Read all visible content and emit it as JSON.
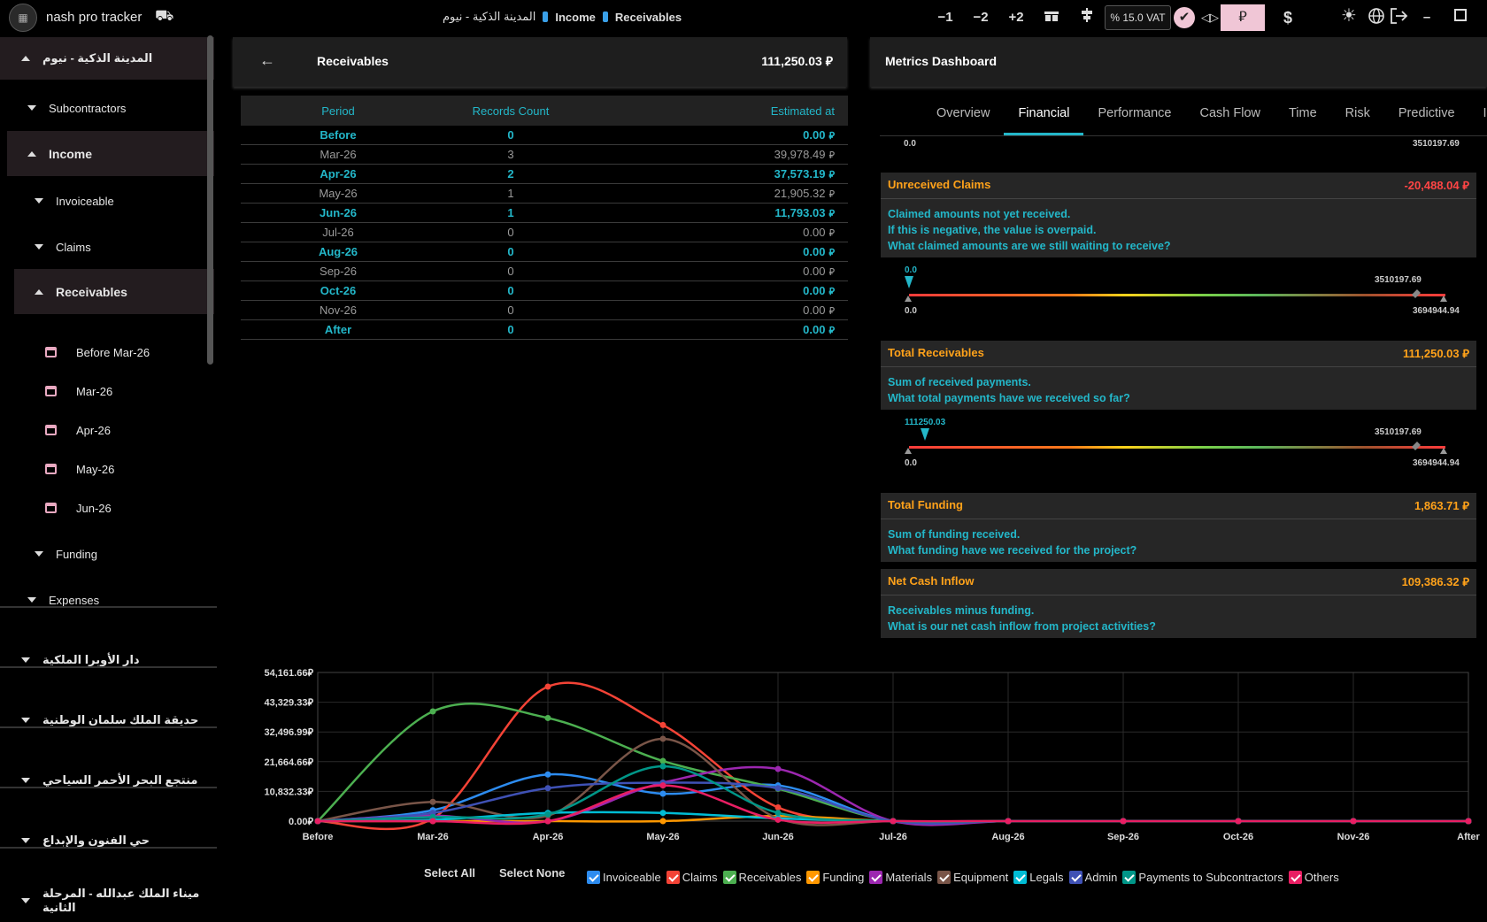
{
  "header": {
    "app_title": "nash pro tracker",
    "crumbs": [
      "المدينة الذكية - نيوم",
      "Income",
      "Receivables"
    ],
    "minus1": "−1",
    "minus2": "−2",
    "plus2": "+2",
    "vat": "% 15.0 VAT",
    "currency_sar": "⃁",
    "currency_usd": "$"
  },
  "sidebar": {
    "project": "المدينة الذكية - نيوم",
    "subcontractors": "Subcontractors",
    "income": "Income",
    "invoiceable": "Invoiceable",
    "claims": "Claims",
    "receivables": "Receivables",
    "periods": [
      "Before Mar-26",
      "Mar-26",
      "Apr-26",
      "May-26",
      "Jun-26"
    ],
    "funding": "Funding",
    "expenses": "Expenses",
    "projects": [
      "دار الأوبرا الملكية",
      "حديقة الملك سلمان الوطنية",
      "منتجع البحر الأحمر السياحي",
      "حي الفنون والإبداع",
      "ميناء الملك عبدالله - المرحلة الثانية"
    ]
  },
  "receivables": {
    "title": "Receivables",
    "total": "111,250.03",
    "currency": "⃁",
    "columns": [
      "Period",
      "Records Count",
      "Estimated at"
    ],
    "rows": [
      {
        "period": "Before",
        "count": "0",
        "amount": "0.00"
      },
      {
        "period": "Mar-26",
        "count": "3",
        "amount": "39,978.49"
      },
      {
        "period": "Apr-26",
        "count": "2",
        "amount": "37,573.19"
      },
      {
        "period": "May-26",
        "count": "1",
        "amount": "21,905.32"
      },
      {
        "period": "Jun-26",
        "count": "1",
        "amount": "11,793.03"
      },
      {
        "period": "Jul-26",
        "count": "0",
        "amount": "0.00"
      },
      {
        "period": "Aug-26",
        "count": "0",
        "amount": "0.00"
      },
      {
        "period": "Sep-26",
        "count": "0",
        "amount": "0.00"
      },
      {
        "period": "Oct-26",
        "count": "0",
        "amount": "0.00"
      },
      {
        "period": "Nov-26",
        "count": "0",
        "amount": "0.00"
      },
      {
        "period": "After",
        "count": "0",
        "amount": "0.00"
      }
    ]
  },
  "metrics": {
    "title": "Metrics Dashboard",
    "tabs": [
      "Overview",
      "Financial",
      "Performance",
      "Cash Flow",
      "Time",
      "Risk",
      "Predictive",
      "I"
    ],
    "active_tab": "Financial",
    "top_gauge": {
      "min": "0.0",
      "max": "3510197.69"
    },
    "cards": [
      {
        "title": "Unreceived Claims",
        "value": "-20,488.04",
        "value_color": "#ff4545",
        "desc": [
          "Claimed amounts not yet received.",
          "If this is negative, the value is overpaid.",
          "What claimed amounts are we still waiting to receive?"
        ],
        "gauge": {
          "marker": "0.0",
          "target": "3510197.69",
          "min": "0.0",
          "max": "3694944.94",
          "marker_pos": 0.0
        }
      },
      {
        "title": "Total Receivables",
        "value": "111,250.03",
        "value_color": "#ffa21a",
        "desc": [
          "Sum of received payments.",
          "What total payments have we received so far?"
        ],
        "gauge": {
          "marker": "111250.03",
          "target": "3510197.69",
          "min": "0.0",
          "max": "3694944.94",
          "marker_pos": 0.03
        }
      },
      {
        "title": "Total Funding",
        "value": "1,863.71",
        "value_color": "#ffa21a",
        "desc": [
          "Sum of funding received.",
          "What funding have we received for the project?"
        ]
      },
      {
        "title": "Net Cash Inflow",
        "value": "109,386.32",
        "value_color": "#ffa21a",
        "desc": [
          "Receivables minus funding.",
          "What is our net cash inflow from project activities?"
        ]
      }
    ]
  },
  "chart_data": {
    "type": "line",
    "categories": [
      "Before",
      "Mar-26",
      "Apr-26",
      "May-26",
      "Jun-26",
      "Jul-26",
      "Aug-26",
      "Sep-26",
      "Oct-26",
      "Nov-26",
      "After"
    ],
    "y_ticks": [
      "54,161.66",
      "43,329.33",
      "32,496.99",
      "21,664.66",
      "10,832.33",
      "0.00"
    ],
    "ylim": [
      0,
      54161.66
    ],
    "series": [
      {
        "name": "Invoiceable",
        "color": "#2d8cf0",
        "values": [
          0,
          4000,
          17000,
          10000,
          13000,
          0,
          0,
          0,
          0,
          0,
          0
        ]
      },
      {
        "name": "Claims",
        "color": "#f44336",
        "values": [
          0,
          1000,
          49000,
          35000,
          5000,
          0,
          0,
          0,
          0,
          0,
          0
        ]
      },
      {
        "name": "Receivables",
        "color": "#4caf50",
        "values": [
          0,
          39978.49,
          37573.19,
          21905.32,
          11793.03,
          0,
          0,
          0,
          0,
          0,
          0
        ]
      },
      {
        "name": "Funding",
        "color": "#ff9800",
        "values": [
          0,
          0,
          0,
          0,
          1863.71,
          0,
          0,
          0,
          0,
          0,
          0
        ]
      },
      {
        "name": "Materials",
        "color": "#9c27b0",
        "values": [
          0,
          2000,
          0,
          14000,
          19000,
          0,
          0,
          0,
          0,
          0,
          0
        ]
      },
      {
        "name": "Equipment",
        "color": "#795548",
        "values": [
          0,
          7000,
          2000,
          30000,
          1000,
          0,
          0,
          0,
          0,
          0,
          0
        ]
      },
      {
        "name": "Legals",
        "color": "#00bcd4",
        "values": [
          0,
          500,
          3000,
          3000,
          1000,
          0,
          0,
          0,
          0,
          0,
          0
        ]
      },
      {
        "name": "Admin",
        "color": "#3f51b5",
        "values": [
          0,
          3000,
          12000,
          14000,
          12000,
          0,
          0,
          0,
          0,
          0,
          0
        ]
      },
      {
        "name": "Payments to Subcontractors",
        "color": "#009688",
        "values": [
          0,
          1500,
          2500,
          20000,
          3000,
          0,
          0,
          0,
          0,
          0,
          0
        ]
      },
      {
        "name": "Others",
        "color": "#e91e63",
        "values": [
          0,
          0,
          0,
          13000,
          500,
          0,
          0,
          0,
          0,
          0,
          0
        ]
      }
    ],
    "select_all": "Select All",
    "select_none": "Select None"
  }
}
